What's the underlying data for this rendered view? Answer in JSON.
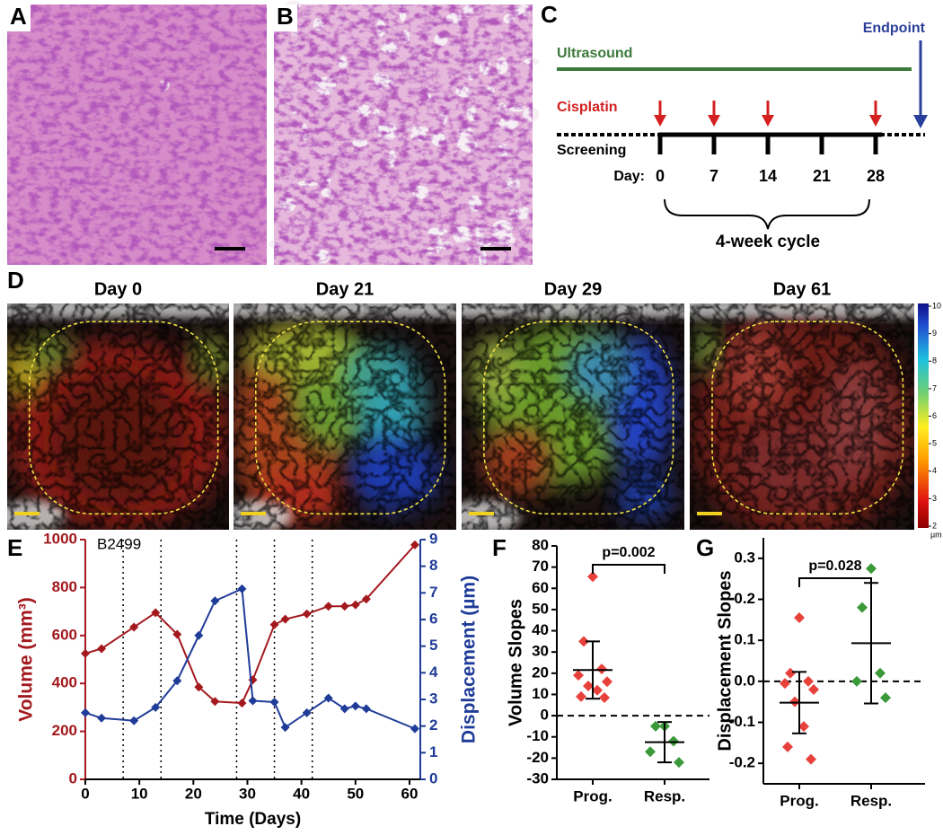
{
  "histology": [
    {
      "label": "A"
    },
    {
      "label": "B"
    }
  ],
  "timeline": {
    "label": "C",
    "ultrasound": "Ultrasound",
    "endpoint": "Endpoint",
    "cisplatin": "Cisplatin",
    "screening": "Screening",
    "day_label": "Day:",
    "days": [
      0,
      7,
      14,
      21,
      28
    ],
    "cisplatin_days": [
      0,
      7,
      14,
      28
    ],
    "cycle": "4-week cycle"
  },
  "displacement_maps": {
    "label": "D",
    "titles": [
      "Day 0",
      "Day 21",
      "Day 29",
      "Day 61"
    ],
    "colorbar_ticks": [
      2,
      3,
      4,
      5,
      6,
      7,
      8,
      9,
      10
    ],
    "colorbar_unit": "µm"
  },
  "chart_data": [
    {
      "type": "line",
      "label": "E",
      "title": "B2499",
      "x_label": "Time (Days)",
      "y_label": "Volume (mm³)",
      "y2_label": "Displacement (µm)",
      "x": [
        0,
        3,
        9,
        13,
        17,
        21,
        24,
        29,
        31,
        35,
        37,
        41,
        45,
        48,
        50,
        52,
        61
      ],
      "series": [
        {
          "color": "#a3191e",
          "values": [
            525,
            545,
            635,
            695,
            605,
            385,
            325,
            318,
            415,
            645,
            668,
            690,
            722,
            722,
            728,
            752,
            978
          ]
        },
        {
          "color": "#1f3c99",
          "axis": "y2",
          "values": [
            2.5,
            2.3,
            2.2,
            2.7,
            3.7,
            5.4,
            6.7,
            7.15,
            2.95,
            2.9,
            1.95,
            2.5,
            3.05,
            2.65,
            2.75,
            2.65,
            1.9
          ]
        }
      ],
      "vlines": [
        7,
        14,
        28,
        35,
        42
      ],
      "xlim": [
        0,
        62
      ],
      "xticks": [
        0,
        10,
        20,
        30,
        40,
        50,
        60
      ],
      "ylim": [
        0,
        1000
      ],
      "yticks": [
        0,
        200,
        400,
        600,
        800,
        1000
      ],
      "y2lim": [
        0,
        9
      ],
      "y2ticks": [
        0,
        1,
        2,
        3,
        4,
        5,
        6,
        7,
        8,
        9
      ]
    },
    {
      "type": "scatter",
      "label": "F",
      "y_label": "Volume Slopes",
      "annotation": "p=0.002",
      "categories": [
        "Prog.",
        "Resp."
      ],
      "colors": [
        "#e8413c",
        "#3a9a3a"
      ],
      "points": [
        [
          65.5,
          35,
          22,
          19,
          16,
          14,
          12,
          9,
          8.5
        ],
        [
          -5,
          -5,
          -12,
          -17,
          -22
        ]
      ],
      "means": [
        21.5,
        -12.5
      ],
      "errors": [
        13.5,
        9.5
      ],
      "ref_line": 0,
      "ylim": [
        -30,
        80
      ],
      "yticks": [
        -30,
        -20,
        -10,
        0,
        10,
        20,
        30,
        40,
        50,
        60,
        70,
        80
      ]
    },
    {
      "type": "scatter",
      "label": "G",
      "y_label": "Displacement Slopes",
      "annotation": "p=0.028",
      "categories": [
        "Prog.",
        "Resp."
      ],
      "colors": [
        "#e8413c",
        "#3a9a3a"
      ],
      "points": [
        [
          0.155,
          0.02,
          0,
          -0.005,
          -0.02,
          -0.05,
          -0.11,
          -0.16,
          -0.19
        ],
        [
          0.275,
          0.18,
          0.02,
          0,
          -0.04
        ]
      ],
      "means": [
        -0.052,
        0.093
      ],
      "errors": [
        0.075,
        0.147
      ],
      "ref_line": 0,
      "ylim": [
        -0.25,
        0.35
      ],
      "yticks": [
        -0.2,
        -0.1,
        {
          "value": 0,
          "label": "0.0"
        },
        0.1,
        0.2,
        0.3
      ]
    }
  ]
}
